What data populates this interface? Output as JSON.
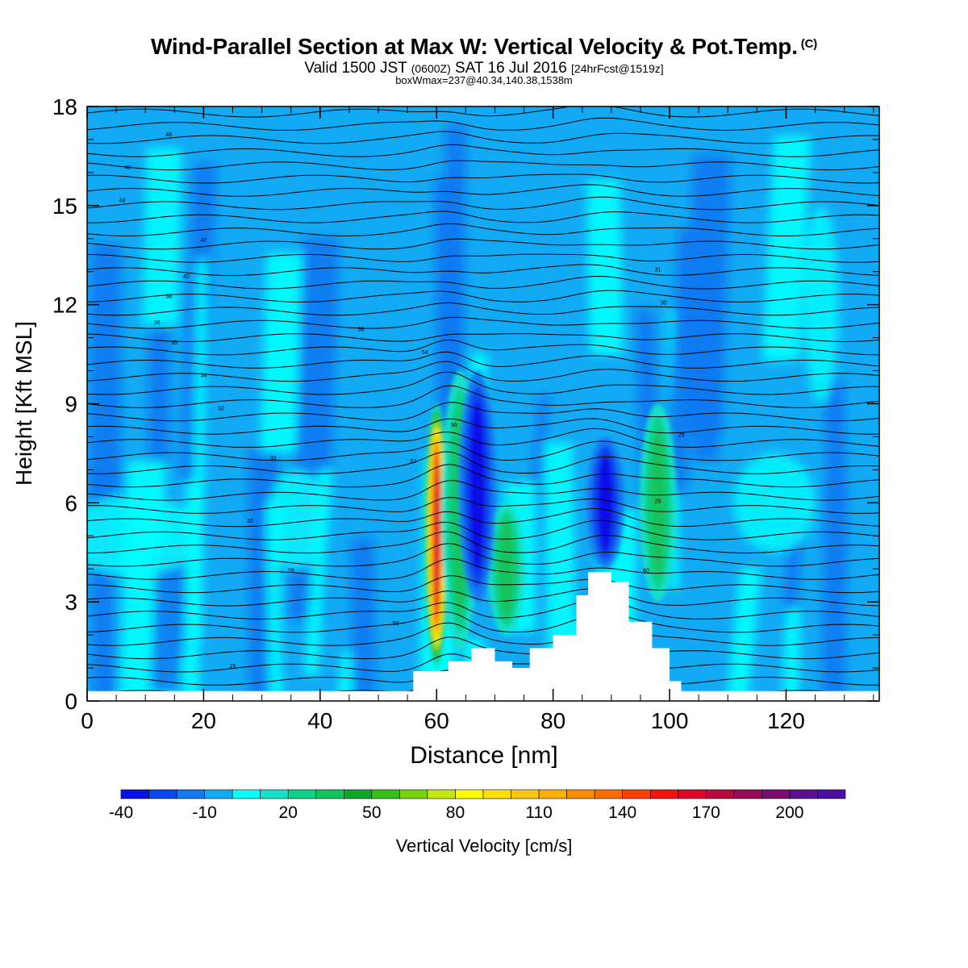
{
  "header": {
    "title": "Wind-Parallel Section at Max W: Vertical Velocity & Pot.Temp.",
    "copyright": "(C)",
    "valid_prefix": "Valid 1500 JST",
    "valid_utc": "(0600Z)",
    "valid_date": "SAT 16 Jul 2016",
    "forecast": "[24hrFcst@1519z]",
    "box_wmax": "boxWmax=237@40.34,140.38,1538m"
  },
  "chart_data": {
    "type": "heatmap",
    "title": "Wind-Parallel Section at Max W: Vertical Velocity & Pot.Temp.",
    "xlabel": "Distance [nm]",
    "ylabel": "Height [Kft MSL]",
    "xlim": [
      0,
      136
    ],
    "ylim": [
      0,
      18
    ],
    "x_ticks": [
      "0",
      "20",
      "40",
      "60",
      "80",
      "100",
      "120"
    ],
    "y_ticks": [
      "0",
      "3",
      "6",
      "9",
      "12",
      "15",
      "18"
    ],
    "colorbar": {
      "label": "Vertical Velocity [cm/s]",
      "tick_labels": [
        "-40",
        "-10",
        "20",
        "50",
        "80",
        "110",
        "140",
        "170",
        "200"
      ],
      "levels": [
        -40,
        -30,
        -20,
        -10,
        0,
        10,
        20,
        30,
        40,
        50,
        60,
        70,
        80,
        90,
        100,
        110,
        120,
        130,
        140,
        150,
        160,
        170,
        180,
        190,
        200,
        210,
        220
      ],
      "colors": [
        "#0a10e8",
        "#0846f2",
        "#1279f2",
        "#13aaf5",
        "#06ffff",
        "#13e1ca",
        "#0ed18a",
        "#12c45d",
        "#0ea72e",
        "#36bf17",
        "#7ad40b",
        "#c4e80e",
        "#ffff00",
        "#ffe000",
        "#ffc611",
        "#ffb006",
        "#ff8c00",
        "#ff6d00",
        "#ff4000",
        "#f4140b",
        "#dd0628",
        "#b90a40",
        "#9a0b5c",
        "#7a0d6f",
        "#5c1090",
        "#4c0ea0"
      ]
    },
    "features": [
      {
        "name": "updraft",
        "x": 60,
        "y_bottom": 1,
        "y_top": 9,
        "w_max": 180
      },
      {
        "name": "updraft",
        "x": 64,
        "y_bottom": 1.5,
        "y_top": 10,
        "w_max": 45
      },
      {
        "name": "updraft",
        "x": 72,
        "y_bottom": 2,
        "y_top": 6,
        "w_max": 45
      },
      {
        "name": "updraft",
        "x": 98,
        "y_bottom": 3,
        "y_top": 9,
        "w_max": 40
      },
      {
        "name": "downdraft",
        "x": 67,
        "y_bottom": 3,
        "y_top": 10,
        "w_min": -40
      },
      {
        "name": "downdraft",
        "x": 89,
        "y_bottom": 4,
        "y_top": 8,
        "w_min": -40
      }
    ],
    "terrain": [
      {
        "x": 0,
        "h": 0.3
      },
      {
        "x": 54,
        "h": 0.3
      },
      {
        "x": 56,
        "h": 0.9
      },
      {
        "x": 62,
        "h": 1.2
      },
      {
        "x": 66,
        "h": 1.6
      },
      {
        "x": 70,
        "h": 1.2
      },
      {
        "x": 73,
        "h": 1.0
      },
      {
        "x": 76,
        "h": 1.6
      },
      {
        "x": 80,
        "h": 2.0
      },
      {
        "x": 84,
        "h": 3.2
      },
      {
        "x": 86,
        "h": 3.9
      },
      {
        "x": 90,
        "h": 3.6
      },
      {
        "x": 93,
        "h": 2.4
      },
      {
        "x": 97,
        "h": 1.6
      },
      {
        "x": 100,
        "h": 0.6
      },
      {
        "x": 102,
        "h": 0.3
      },
      {
        "x": 136,
        "h": 0.3
      }
    ],
    "contour_labels": [
      "25",
      "28",
      "30",
      "31",
      "32",
      "34",
      "35",
      "36",
      "38",
      "40",
      "42",
      "44",
      "46",
      "48",
      "50",
      "52",
      "54",
      "56",
      "58",
      "60"
    ]
  }
}
